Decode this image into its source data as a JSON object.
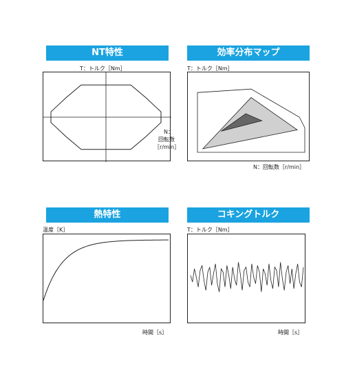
{
  "panels": {
    "nt": {
      "title": "NT特性",
      "ylabel": "T：トルク［Nm］",
      "xlabel_lines": [
        "N：",
        "回転数",
        "［r/min］"
      ]
    },
    "eff": {
      "title": "効率分布マップ",
      "ylabel": "T：トルク［Nm］",
      "xlabel": "N：回転数［r/min］"
    },
    "heat": {
      "title": "熱特性",
      "ylabel": "温度［K］",
      "xlabel": "時間［s］"
    },
    "cog": {
      "title": "コキングトルク",
      "ylabel": "T：トルク［Nm］",
      "xlabel": "時間［s］"
    }
  },
  "colors": {
    "title_bar": "#1aa3e0",
    "region_light": "#d0d0d0",
    "region_dark": "#666666",
    "line": "#222222"
  },
  "chart_data": [
    {
      "type": "line",
      "title": "NT特性",
      "ylabel": "T：トルク［Nm］",
      "xlabel": "N：回転数［r/min］",
      "series": [
        {
          "x": [
            -1.0,
            -0.95,
            -0.72,
            -0.45,
            0,
            0.45,
            0.72,
            0.95,
            1.0,
            1.0,
            0.95,
            0.72,
            0.45,
            0,
            -0.45,
            -0.72,
            -0.95,
            -1.0,
            -1.0
          ],
          "y": [
            0.15,
            0.22,
            0.55,
            0.9,
            0.9,
            0.9,
            0.55,
            0.22,
            0.15,
            -0.15,
            -0.22,
            -0.55,
            -0.9,
            -0.9,
            -0.9,
            -0.55,
            -0.22,
            -0.15,
            0.15
          ]
        }
      ]
    },
    {
      "type": "area",
      "title": "効率分布マップ",
      "ylabel": "T：トルク［Nm］",
      "xlabel": "N：回転数［r/min］",
      "series": [
        {
          "x": [
            0.0,
            0.0,
            0.5,
            0.95,
            1.0,
            1.0,
            0.0
          ],
          "y": [
            0.0,
            0.85,
            0.9,
            0.5,
            0.35,
            0.0,
            0.0
          ]
        },
        {
          "x": [
            0.05,
            0.5,
            0.93,
            0.05
          ],
          "y": [
            0.05,
            0.78,
            0.32,
            0.05
          ]
        },
        {
          "x": [
            0.22,
            0.45,
            0.6,
            0.22
          ],
          "y": [
            0.3,
            0.55,
            0.45,
            0.3
          ]
        }
      ]
    },
    {
      "type": "line",
      "title": "熱特性",
      "ylabel": "温度［K］",
      "xlabel": "時間［s］",
      "series": [
        {
          "x": [
            0,
            0.05,
            0.1,
            0.15,
            0.2,
            0.3,
            0.4,
            0.5,
            0.6,
            0.7,
            0.8,
            0.9,
            1.0
          ],
          "y": [
            0.0,
            0.35,
            0.55,
            0.68,
            0.77,
            0.87,
            0.92,
            0.95,
            0.97,
            0.98,
            0.985,
            0.99,
            0.99
          ]
        }
      ]
    },
    {
      "type": "line",
      "title": "コキングトルク",
      "ylabel": "T：トルク［Nm］",
      "xlabel": "時間［s］",
      "series": [
        {
          "values": [
            0.1,
            -0.3,
            0.5,
            0.0,
            -0.6,
            0.4,
            0.7,
            -0.2,
            -0.8,
            0.3,
            0.6,
            -0.5,
            0.2,
            0.8,
            -0.4,
            -0.9,
            0.5,
            0.3,
            -0.6,
            0.7,
            0.1,
            -0.7,
            0.6,
            -0.1,
            -0.5,
            0.9,
            0.2,
            -0.8,
            0.4,
            0.6,
            -0.3,
            -0.6,
            0.8,
            0.0,
            -0.4,
            0.7,
            0.3,
            -0.9,
            0.5,
            0.2,
            -0.5,
            0.8,
            -0.2,
            -0.7,
            0.6,
            0.4,
            -0.6,
            0.9,
            -0.1,
            -0.8,
            0.3,
            0.7,
            -0.4,
            0.5,
            -0.7,
            0.2,
            0.8,
            -0.3,
            -0.6,
            0.6
          ]
        }
      ]
    }
  ]
}
